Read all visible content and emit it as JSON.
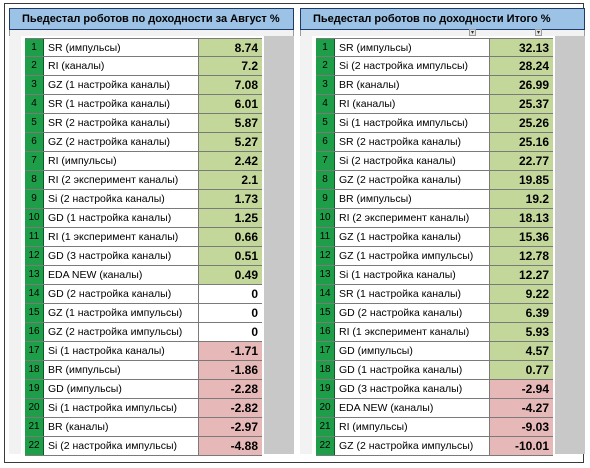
{
  "colors": {
    "positive": "#c4d79b",
    "zero": "#ffffff",
    "negative": "#e6b9b8",
    "rank": "#1f9e4a",
    "header": "#9cc2e5"
  },
  "left": {
    "title": "Пьедестал роботов по доходности за Август %",
    "rows": [
      {
        "rank": "1",
        "name": "SR (импульсы)",
        "value": "8.74",
        "sign": "positive"
      },
      {
        "rank": "2",
        "name": "RI (каналы)",
        "value": "7.2",
        "sign": "positive"
      },
      {
        "rank": "3",
        "name": "GZ (1 настройка каналы)",
        "value": "7.08",
        "sign": "positive"
      },
      {
        "rank": "4",
        "name": "SR (1 настройка каналы)",
        "value": "6.01",
        "sign": "positive"
      },
      {
        "rank": "5",
        "name": "SR (2 настройка каналы)",
        "value": "5.87",
        "sign": "positive"
      },
      {
        "rank": "6",
        "name": "GZ (2 настройка каналы)",
        "value": "5.27",
        "sign": "positive"
      },
      {
        "rank": "7",
        "name": "RI  (импульсы)",
        "value": "2.42",
        "sign": "positive"
      },
      {
        "rank": "8",
        "name": "RI (2 эксперимент каналы)",
        "value": "2.1",
        "sign": "positive"
      },
      {
        "rank": "9",
        "name": "Si (2 настройка каналы)",
        "value": "1.73",
        "sign": "positive"
      },
      {
        "rank": "10",
        "name": "GD (1 настройка каналы)",
        "value": "1.25",
        "sign": "positive"
      },
      {
        "rank": "11",
        "name": "RI (1 эксперимент каналы)",
        "value": "0.66",
        "sign": "positive"
      },
      {
        "rank": "12",
        "name": "GD (3 настройка каналы)",
        "value": "0.51",
        "sign": "positive"
      },
      {
        "rank": "13",
        "name": "EDA NEW (каналы)",
        "value": "0.49",
        "sign": "positive"
      },
      {
        "rank": "14",
        "name": "GD (2 настройка каналы)",
        "value": "0",
        "sign": "zero"
      },
      {
        "rank": "15",
        "name": "GZ (1 настройка импульсы)",
        "value": "0",
        "sign": "zero"
      },
      {
        "rank": "16",
        "name": "GZ (2 настройка импульсы)",
        "value": "0",
        "sign": "zero"
      },
      {
        "rank": "17",
        "name": "Si (1 настройка каналы)",
        "value": "-1.71",
        "sign": "negative"
      },
      {
        "rank": "18",
        "name": "BR (импульсы)",
        "value": "-1.86",
        "sign": "negative"
      },
      {
        "rank": "19",
        "name": "GD  (импульсы)",
        "value": "-2.28",
        "sign": "negative"
      },
      {
        "rank": "20",
        "name": "Si (1 настройка импульсы)",
        "value": "-2.82",
        "sign": "negative"
      },
      {
        "rank": "21",
        "name": "BR (каналы)",
        "value": "-2.97",
        "sign": "negative"
      },
      {
        "rank": "22",
        "name": "Si (2 настройка импульсы)",
        "value": "-4.88",
        "sign": "negative"
      }
    ]
  },
  "right": {
    "title": "Пьедестал роботов по доходности Итого %",
    "rows": [
      {
        "rank": "1",
        "name": "SR (импульсы)",
        "value": "32.13",
        "sign": "positive"
      },
      {
        "rank": "2",
        "name": "Si (2 настройка импульсы)",
        "value": "28.24",
        "sign": "positive"
      },
      {
        "rank": "3",
        "name": "BR (каналы)",
        "value": "26.99",
        "sign": "positive"
      },
      {
        "rank": "4",
        "name": "RI (каналы)",
        "value": "25.37",
        "sign": "positive"
      },
      {
        "rank": "5",
        "name": "Si (1 настройка импульсы)",
        "value": "25.26",
        "sign": "positive"
      },
      {
        "rank": "6",
        "name": "SR (2 настройка каналы)",
        "value": "25.16",
        "sign": "positive"
      },
      {
        "rank": "7",
        "name": "Si (2 настройка каналы)",
        "value": "22.77",
        "sign": "positive"
      },
      {
        "rank": "8",
        "name": "GZ (2 настройка каналы)",
        "value": "19.85",
        "sign": "positive"
      },
      {
        "rank": "9",
        "name": "BR (импульсы)",
        "value": "19.2",
        "sign": "positive"
      },
      {
        "rank": "10",
        "name": "RI (2 эксперимент каналы)",
        "value": "18.13",
        "sign": "positive"
      },
      {
        "rank": "11",
        "name": "GZ (1 настройка каналы)",
        "value": "15.36",
        "sign": "positive"
      },
      {
        "rank": "12",
        "name": "GZ (1 настройка импульсы)",
        "value": "12.78",
        "sign": "positive"
      },
      {
        "rank": "13",
        "name": "Si (1 настройка каналы)",
        "value": "12.27",
        "sign": "positive"
      },
      {
        "rank": "14",
        "name": "SR (1 настройка каналы)",
        "value": "9.22",
        "sign": "positive"
      },
      {
        "rank": "15",
        "name": "GD (2 настройка каналы)",
        "value": "6.39",
        "sign": "positive"
      },
      {
        "rank": "16",
        "name": "RI (1 эксперимент каналы)",
        "value": "5.93",
        "sign": "positive"
      },
      {
        "rank": "17",
        "name": "GD  (импульсы)",
        "value": "4.57",
        "sign": "positive"
      },
      {
        "rank": "18",
        "name": "GD (1 настройка каналы)",
        "value": "0.77",
        "sign": "positive"
      },
      {
        "rank": "19",
        "name": "GD (3 настройка каналы)",
        "value": "-2.94",
        "sign": "negative"
      },
      {
        "rank": "20",
        "name": "EDA NEW (каналы)",
        "value": "-4.27",
        "sign": "negative"
      },
      {
        "rank": "21",
        "name": "RI  (импульсы)",
        "value": "-9.03",
        "sign": "negative"
      },
      {
        "rank": "22",
        "name": "GZ (2 настройка импульсы)",
        "value": "-10.01",
        "sign": "negative"
      }
    ]
  }
}
